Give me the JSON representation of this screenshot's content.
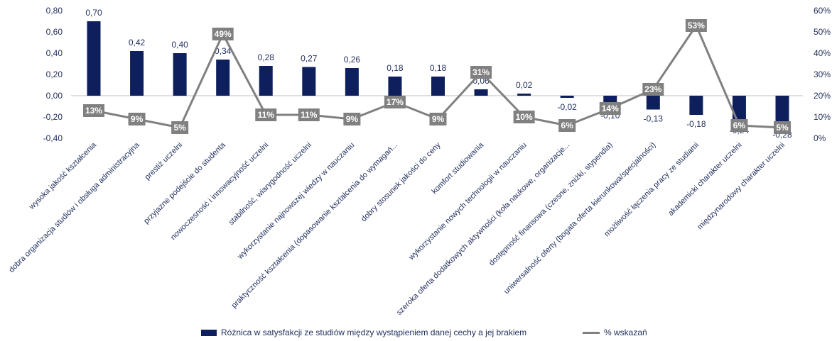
{
  "chart_data": {
    "type": "bar",
    "categories": [
      "wysoka jakość kształcenia",
      "dobra organizacja studiów i obsługa administracyjna",
      "prestiż uczelni",
      "przyjazne podejście do studenta",
      "nowoczesność i innowacyjność uczelni",
      "stabilność, wiarygodność uczelni",
      "wykorzystanie najnowszej wiedzy w nauczaniu",
      "praktyczność kształcenia (dopasowanie kształcenia do wymagań...",
      "dobry stosunek jakości do ceny",
      "komfort studiowania",
      "wykorzystanie nowych technologii w nauczaniu",
      "szeroka oferta dodatkowych aktywności (koła naukowe, organizacje...",
      "dostępność finansowa (czesne, zniżki, stypendia)",
      "uniwersalność oferty (bogata oferta kierunkowa/specjalności)",
      "możliwość łączenia pracy ze studiami",
      "akademicki charakter uczelni",
      "międzynarodowy charakter uczelni"
    ],
    "series": [
      {
        "name": "Różnica w satysfakcji ze studiów między wystąpieniem danej cechy a jej brakiem",
        "type": "bar",
        "axis": "left",
        "values": [
          0.7,
          0.42,
          0.4,
          0.34,
          0.28,
          0.27,
          0.26,
          0.18,
          0.18,
          0.06,
          0.02,
          -0.02,
          -0.1,
          -0.13,
          -0.18,
          -0.24,
          -0.28
        ],
        "labels": [
          "0,70",
          "0,42",
          "0,40",
          "0,34",
          "0,28",
          "0,27",
          "0,26",
          "0,18",
          "0,18",
          "0,06",
          "0,02",
          "-0,02",
          "-0,10",
          "-0,13",
          "-0,18",
          "-0,24",
          "-0,28"
        ],
        "color": "#0d1f5c"
      },
      {
        "name": "% wskazań",
        "type": "line",
        "axis": "right",
        "values": [
          13,
          9,
          5,
          49,
          11,
          11,
          9,
          17,
          9,
          31,
          10,
          6,
          14,
          23,
          53,
          6,
          5
        ],
        "labels": [
          "13%",
          "9%",
          "5%",
          "49%",
          "11%",
          "11%",
          "9%",
          "17%",
          "9%",
          "31%",
          "10%",
          "6%",
          "14%",
          "23%",
          "53%",
          "6%",
          "5%"
        ],
        "color": "#808080"
      }
    ],
    "y_left": {
      "ylim": [
        -0.4,
        0.8
      ],
      "ticks": [
        "-0,40",
        "-0,20",
        "0,00",
        "0,20",
        "0,40",
        "0,60",
        "0,80"
      ]
    },
    "y_right": {
      "ylim": [
        0,
        60
      ],
      "ticks": [
        "0%",
        "10%",
        "20%",
        "30%",
        "40%",
        "50%",
        "60%"
      ]
    },
    "grid": false,
    "legend_position": "bottom"
  }
}
